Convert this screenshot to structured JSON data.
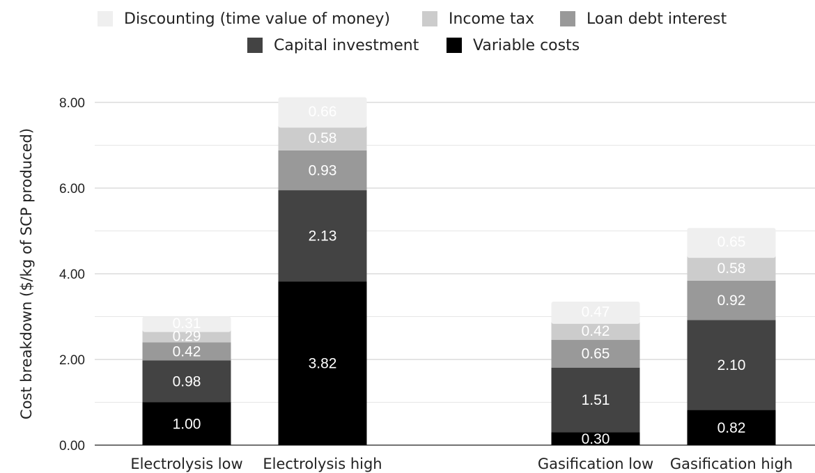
{
  "chart_data": {
    "type": "bar",
    "stacked": true,
    "title": "",
    "xlabel": "",
    "ylabel": "Cost breakdown ($/kg of SCP produced)",
    "ylim": [
      0,
      8.0
    ],
    "yticks": [
      "0.00",
      "2.00",
      "4.00",
      "6.00",
      "8.00"
    ],
    "grid": true,
    "legend_position": "top",
    "categories": [
      "Electrolysis low",
      "Electrolysis high",
      "",
      "Gasification low",
      "Gasification high"
    ],
    "series": [
      {
        "name": "Variable costs",
        "color": "#000000",
        "values": [
          1.0,
          3.82,
          null,
          0.3,
          0.82
        ],
        "labels": [
          "1.00",
          "3.82",
          "",
          "0.30",
          "0.82"
        ]
      },
      {
        "name": "Capital investment",
        "color": "#434343",
        "values": [
          0.98,
          2.13,
          null,
          1.51,
          2.1
        ],
        "labels": [
          "0.98",
          "2.13",
          "",
          "1.51",
          "2.10"
        ]
      },
      {
        "name": "Loan debt interest",
        "color": "#999999",
        "values": [
          0.42,
          0.93,
          null,
          0.65,
          0.92
        ],
        "labels": [
          "0.42",
          "0.93",
          "",
          "0.65",
          "0.92"
        ]
      },
      {
        "name": "Income tax",
        "color": "#cccccc",
        "values": [
          0.29,
          0.58,
          null,
          0.42,
          0.58
        ],
        "labels": [
          "0.29",
          "0.58",
          "",
          "0.42",
          "0.58"
        ]
      },
      {
        "name": "Discounting (time value of money)",
        "color": "#efefef",
        "values": [
          0.31,
          0.66,
          null,
          0.47,
          0.65
        ],
        "labels": [
          "0.31",
          "0.66",
          "",
          "0.47",
          "0.65"
        ]
      }
    ],
    "legend_order": [
      "Discounting (time value of money)",
      "Income tax",
      "Loan debt interest",
      "Capital investment",
      "Variable costs"
    ]
  }
}
